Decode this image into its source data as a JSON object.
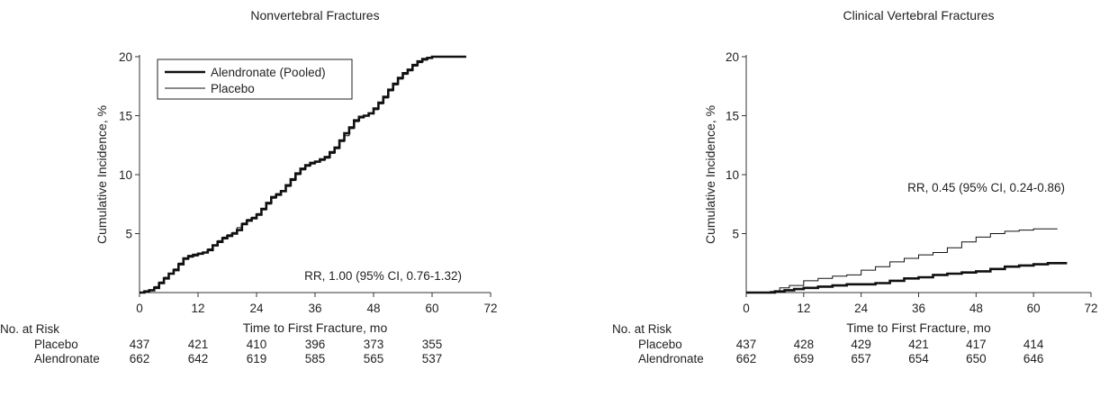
{
  "chart_data": [
    {
      "type": "line",
      "title": "Nonvertebral Fractures",
      "xlabel": "Time to First Fracture, mo",
      "ylabel": "Cumulative Incidence, %",
      "xlim": [
        0,
        72
      ],
      "ylim": [
        0,
        20
      ],
      "xticks": [
        0,
        12,
        24,
        36,
        48,
        60,
        72
      ],
      "yticks": [
        5,
        10,
        15,
        20
      ],
      "grid": false,
      "legend": {
        "placement": "top-left",
        "entries": [
          "Alendronate (Pooled)",
          "Placebo"
        ]
      },
      "annotation": "RR, 1.00 (95% CI, 0.76-1.32)",
      "series": [
        {
          "name": "Alendronate (Pooled)",
          "x": [
            0,
            1,
            2,
            3,
            4,
            5,
            6,
            7,
            8,
            9,
            10,
            11,
            12,
            13,
            14,
            15,
            16,
            17,
            18,
            19,
            20,
            21,
            22,
            23,
            24,
            25,
            26,
            27,
            28,
            29,
            30,
            31,
            32,
            33,
            34,
            35,
            36,
            37,
            38,
            39,
            40,
            41,
            42,
            43,
            44,
            45,
            46,
            47,
            48,
            49,
            50,
            51,
            52,
            53,
            54,
            55,
            56,
            57,
            58,
            59,
            60,
            61,
            62,
            63,
            64,
            65,
            66,
            67
          ],
          "y": [
            0,
            0.1,
            0.2,
            0.4,
            0.8,
            1.2,
            1.6,
            1.9,
            2.4,
            2.9,
            3.1,
            3.2,
            3.3,
            3.4,
            3.6,
            4.0,
            4.3,
            4.6,
            4.8,
            5.0,
            5.3,
            5.8,
            6.1,
            6.3,
            6.6,
            7.1,
            7.6,
            8.1,
            8.3,
            8.6,
            9.1,
            9.6,
            10.1,
            10.5,
            10.8,
            11.0,
            11.1,
            11.3,
            11.5,
            11.9,
            12.3,
            12.9,
            13.5,
            14.0,
            14.6,
            14.9,
            15.0,
            15.2,
            15.6,
            16.1,
            16.6,
            17.2,
            17.7,
            18.2,
            18.6,
            18.9,
            19.3,
            19.6,
            19.8,
            19.9,
            20.0,
            20.0,
            20.0,
            20.0,
            20.0,
            20.0,
            20.0,
            20.0
          ]
        },
        {
          "name": "Placebo",
          "x": [
            0,
            1,
            2,
            3,
            4,
            5,
            6,
            7,
            8,
            9,
            10,
            11,
            12,
            13,
            14,
            15,
            16,
            17,
            18,
            19,
            20,
            21,
            22,
            23,
            24,
            25,
            26,
            27,
            28,
            29,
            30,
            31,
            32,
            33,
            34,
            35,
            36,
            37,
            38,
            39,
            40,
            41,
            42,
            43,
            44,
            45,
            46,
            47,
            48,
            49,
            50,
            51,
            52,
            53,
            54,
            55,
            56,
            57,
            58,
            59,
            60,
            61,
            62,
            63,
            64,
            65,
            66,
            67
          ],
          "y": [
            0,
            0.1,
            0.2,
            0.5,
            0.9,
            1.3,
            1.6,
            2.0,
            2.5,
            2.8,
            3.0,
            3.1,
            3.3,
            3.4,
            3.7,
            4.0,
            4.4,
            4.7,
            4.9,
            5.1,
            5.5,
            5.9,
            6.2,
            6.4,
            6.7,
            7.0,
            7.5,
            8.0,
            8.4,
            8.6,
            9.0,
            9.5,
            10.0,
            10.4,
            10.7,
            10.9,
            11.1,
            11.2,
            11.4,
            11.8,
            12.2,
            12.8,
            13.3,
            13.9,
            14.5,
            14.8,
            15.0,
            15.2,
            15.5,
            16.0,
            16.5,
            17.1,
            17.6,
            18.1,
            18.5,
            18.8,
            19.2,
            19.5,
            19.7,
            19.9,
            20.0,
            20.0,
            20.0,
            20.0,
            20.0,
            20.0,
            20.0,
            20.0
          ]
        }
      ],
      "risk_table": {
        "heading": "No. at Risk",
        "x": [
          0,
          12,
          24,
          36,
          48,
          60
        ],
        "rows": [
          {
            "label": "Placebo",
            "values": [
              "437",
              "421",
              "410",
              "396",
              "373",
              "355"
            ]
          },
          {
            "label": "Alendronate",
            "values": [
              "662",
              "642",
              "619",
              "585",
              "565",
              "537"
            ]
          }
        ]
      }
    },
    {
      "type": "line",
      "title": "Clinical Vertebral Fractures",
      "xlabel": "Time to First Fracture, mo",
      "ylabel": "Cumulative Incidence, %",
      "xlim": [
        0,
        72
      ],
      "ylim": [
        0,
        20
      ],
      "xticks": [
        0,
        12,
        24,
        36,
        48,
        60,
        72
      ],
      "yticks": [
        5,
        10,
        15,
        20
      ],
      "grid": false,
      "annotation": "RR, 0.45 (95% CI, 0.24-0.86)",
      "series": [
        {
          "name": "Alendronate (Pooled)",
          "x": [
            0,
            3,
            6,
            8,
            10,
            12,
            15,
            18,
            21,
            24,
            27,
            30,
            33,
            36,
            39,
            42,
            45,
            48,
            51,
            54,
            57,
            60,
            63,
            67
          ],
          "y": [
            0,
            0.0,
            0.1,
            0.2,
            0.3,
            0.4,
            0.5,
            0.6,
            0.7,
            0.7,
            0.8,
            1.0,
            1.2,
            1.3,
            1.5,
            1.6,
            1.7,
            1.8,
            2.0,
            2.2,
            2.3,
            2.4,
            2.5,
            2.5
          ]
        },
        {
          "name": "Placebo",
          "x": [
            0,
            3,
            5,
            7,
            9,
            12,
            15,
            18,
            21,
            24,
            27,
            30,
            33,
            36,
            39,
            42,
            45,
            48,
            51,
            54,
            57,
            60,
            63,
            65
          ],
          "y": [
            0,
            0.0,
            0.1,
            0.4,
            0.6,
            1.0,
            1.2,
            1.4,
            1.5,
            1.9,
            2.2,
            2.6,
            2.9,
            3.2,
            3.4,
            3.8,
            4.3,
            4.7,
            5.0,
            5.2,
            5.3,
            5.4,
            5.4,
            5.4
          ]
        }
      ],
      "risk_table": {
        "heading": "No. at Risk",
        "x": [
          0,
          12,
          24,
          36,
          48,
          60
        ],
        "rows": [
          {
            "label": "Placebo",
            "values": [
              "437",
              "428",
              "429",
              "421",
              "417",
              "414"
            ]
          },
          {
            "label": "Alendronate",
            "values": [
              "662",
              "659",
              "657",
              "654",
              "650",
              "646"
            ]
          }
        ]
      }
    }
  ]
}
